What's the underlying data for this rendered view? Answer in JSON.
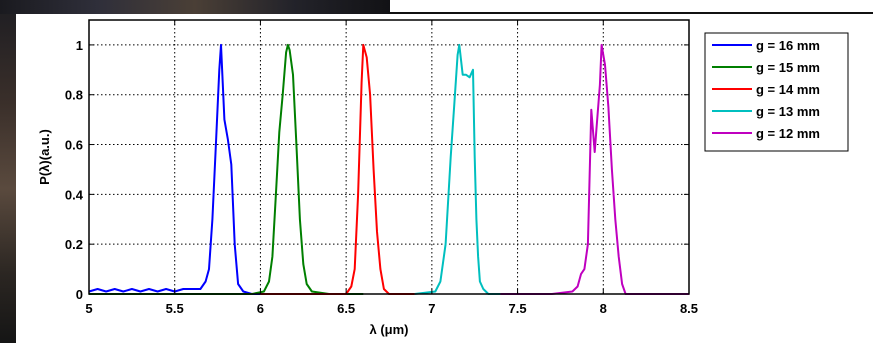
{
  "chart_data": {
    "type": "line",
    "title": "",
    "xlabel": "λ (μm)",
    "ylabel": "P(λ)(a.u.)",
    "xlim": [
      5,
      8.5
    ],
    "ylim": [
      0,
      1.1
    ],
    "xticks": [
      5,
      5.5,
      6,
      6.5,
      7,
      7.5,
      8,
      8.5
    ],
    "xtick_labels": [
      "5",
      "5.5",
      "6",
      "6.5",
      "7",
      "7.5",
      "8",
      "8.5"
    ],
    "yticks": [
      0,
      0.2,
      0.4,
      0.6,
      0.8,
      1
    ],
    "ytick_labels": [
      "0",
      "0.2",
      "0.4",
      "0.6",
      "0.8",
      "1"
    ],
    "grid": true,
    "legend_position": "outside-right",
    "series": [
      {
        "name": "g = 16 mm",
        "color": "#0000ff",
        "points": [
          [
            5.0,
            0.01
          ],
          [
            5.05,
            0.02
          ],
          [
            5.1,
            0.01
          ],
          [
            5.15,
            0.02
          ],
          [
            5.2,
            0.01
          ],
          [
            5.25,
            0.02
          ],
          [
            5.3,
            0.01
          ],
          [
            5.35,
            0.02
          ],
          [
            5.4,
            0.01
          ],
          [
            5.45,
            0.02
          ],
          [
            5.5,
            0.01
          ],
          [
            5.55,
            0.02
          ],
          [
            5.6,
            0.02
          ],
          [
            5.65,
            0.02
          ],
          [
            5.68,
            0.05
          ],
          [
            5.7,
            0.1
          ],
          [
            5.72,
            0.3
          ],
          [
            5.74,
            0.6
          ],
          [
            5.76,
            0.9
          ],
          [
            5.77,
            1.0
          ],
          [
            5.78,
            0.85
          ],
          [
            5.79,
            0.7
          ],
          [
            5.81,
            0.62
          ],
          [
            5.83,
            0.52
          ],
          [
            5.85,
            0.2
          ],
          [
            5.87,
            0.04
          ],
          [
            5.9,
            0.01
          ],
          [
            5.95,
            0.0
          ],
          [
            6.0,
            0.0
          ]
        ]
      },
      {
        "name": "g = 15 mm",
        "color": "#007f00",
        "points": [
          [
            5.0,
            0.0
          ],
          [
            5.5,
            0.0
          ],
          [
            5.95,
            0.0
          ],
          [
            6.02,
            0.01
          ],
          [
            6.05,
            0.05
          ],
          [
            6.07,
            0.15
          ],
          [
            6.09,
            0.4
          ],
          [
            6.11,
            0.65
          ],
          [
            6.13,
            0.8
          ],
          [
            6.15,
            0.97
          ],
          [
            6.16,
            1.0
          ],
          [
            6.17,
            0.98
          ],
          [
            6.19,
            0.88
          ],
          [
            6.21,
            0.6
          ],
          [
            6.23,
            0.3
          ],
          [
            6.25,
            0.12
          ],
          [
            6.27,
            0.04
          ],
          [
            6.3,
            0.01
          ],
          [
            6.4,
            0.0
          ],
          [
            6.6,
            0.0
          ]
        ]
      },
      {
        "name": "g = 14 mm",
        "color": "#ff0000",
        "points": [
          [
            6.0,
            0.0
          ],
          [
            6.5,
            0.0
          ],
          [
            6.53,
            0.03
          ],
          [
            6.55,
            0.1
          ],
          [
            6.57,
            0.4
          ],
          [
            6.59,
            0.85
          ],
          [
            6.6,
            1.0
          ],
          [
            6.62,
            0.95
          ],
          [
            6.64,
            0.8
          ],
          [
            6.66,
            0.5
          ],
          [
            6.68,
            0.25
          ],
          [
            6.7,
            0.1
          ],
          [
            6.72,
            0.02
          ],
          [
            6.75,
            0.0
          ],
          [
            6.9,
            0.0
          ]
        ]
      },
      {
        "name": "g = 13 mm",
        "color": "#00bfbf",
        "points": [
          [
            6.9,
            0.0
          ],
          [
            7.02,
            0.01
          ],
          [
            7.05,
            0.05
          ],
          [
            7.08,
            0.2
          ],
          [
            7.11,
            0.55
          ],
          [
            7.13,
            0.75
          ],
          [
            7.15,
            0.96
          ],
          [
            7.16,
            1.0
          ],
          [
            7.18,
            0.88
          ],
          [
            7.2,
            0.88
          ],
          [
            7.22,
            0.87
          ],
          [
            7.24,
            0.9
          ],
          [
            7.25,
            0.55
          ],
          [
            7.26,
            0.3
          ],
          [
            7.27,
            0.15
          ],
          [
            7.28,
            0.05
          ],
          [
            7.3,
            0.02
          ],
          [
            7.33,
            0.0
          ],
          [
            7.4,
            0.0
          ]
        ]
      },
      {
        "name": "g = 12 mm",
        "color": "#bf00bf",
        "points": [
          [
            7.4,
            0.0
          ],
          [
            7.7,
            0.0
          ],
          [
            7.82,
            0.01
          ],
          [
            7.85,
            0.03
          ],
          [
            7.87,
            0.08
          ],
          [
            7.89,
            0.1
          ],
          [
            7.91,
            0.2
          ],
          [
            7.93,
            0.74
          ],
          [
            7.95,
            0.57
          ],
          [
            7.96,
            0.66
          ],
          [
            7.98,
            0.84
          ],
          [
            7.99,
            1.0
          ],
          [
            8.01,
            0.92
          ],
          [
            8.03,
            0.75
          ],
          [
            8.05,
            0.5
          ],
          [
            8.07,
            0.3
          ],
          [
            8.09,
            0.15
          ],
          [
            8.11,
            0.04
          ],
          [
            8.13,
            0.0
          ],
          [
            8.3,
            0.0
          ],
          [
            8.5,
            0.0
          ]
        ]
      }
    ]
  }
}
